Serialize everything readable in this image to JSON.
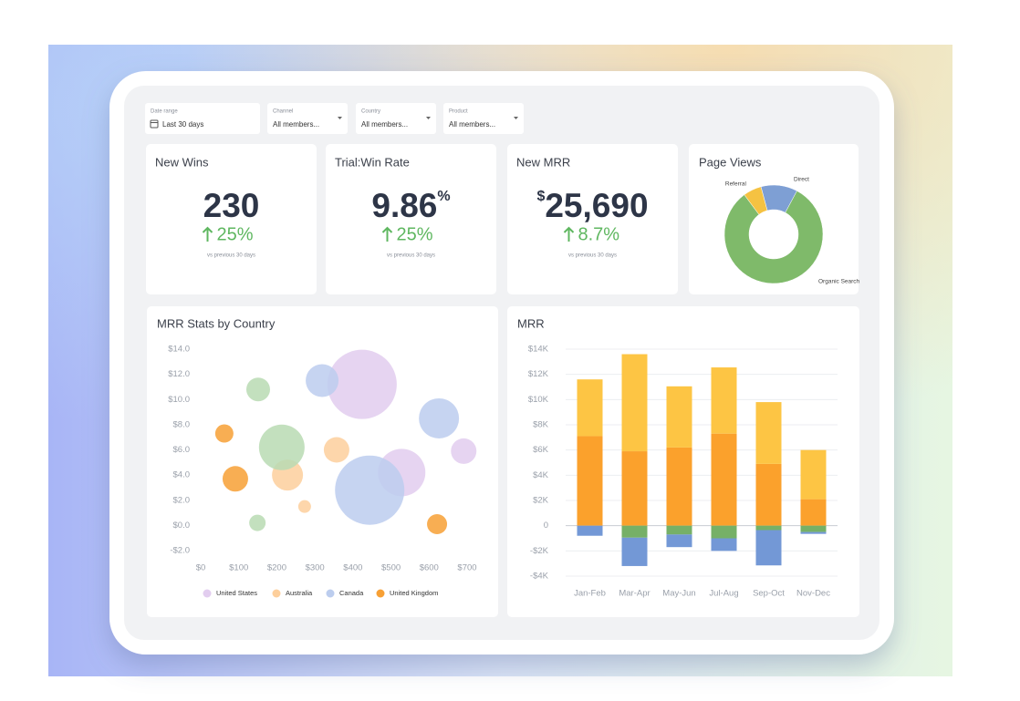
{
  "filters": [
    {
      "label": "Date range",
      "value": "Last 30 days"
    },
    {
      "label": "Channel",
      "value": "All members..."
    },
    {
      "label": "Country",
      "value": "All members..."
    },
    {
      "label": "Product",
      "value": "All members..."
    }
  ],
  "kpis": [
    {
      "title": "New Wins",
      "value": "230",
      "change": "25%",
      "note": "vs previous 30 days"
    },
    {
      "title": "Trial:Win Rate",
      "value": "9.86",
      "suffix": "%",
      "change": "25%",
      "note": "vs previous 30 days"
    },
    {
      "title": "New MRR",
      "prefix": "$",
      "value": "25,690",
      "change": "8.7%",
      "note": "vs previous 30 days"
    }
  ],
  "chart_data": [
    {
      "type": "pie",
      "title": "Page Views",
      "donut": true,
      "categories": [
        "Direct",
        "Organic Search",
        "Referral"
      ],
      "values": [
        12,
        82,
        6
      ],
      "colors": [
        "#7e9fd4",
        "#7fba6a",
        "#f5c242"
      ]
    },
    {
      "type": "scatter",
      "title": "MRR Stats by Country",
      "xlim": [
        0,
        700
      ],
      "xticks": [
        {
          "value": 0,
          "label": "$0"
        },
        {
          "value": 100,
          "label": "$100"
        },
        {
          "value": 200,
          "label": "$200"
        },
        {
          "value": 300,
          "label": "$300"
        },
        {
          "value": 400,
          "label": "$400"
        },
        {
          "value": 500,
          "label": "$500"
        },
        {
          "value": 600,
          "label": "$600"
        },
        {
          "value": 700,
          "label": "$700"
        }
      ],
      "ylim": [
        -2,
        14
      ],
      "yticks": [
        {
          "value": -2,
          "label": "-$2.0"
        },
        {
          "value": 0,
          "label": "$0.0"
        },
        {
          "value": 2,
          "label": "$2.0"
        },
        {
          "value": 4,
          "label": "$4.0"
        },
        {
          "value": 6,
          "label": "$6.0"
        },
        {
          "value": 8,
          "label": "$8.0"
        },
        {
          "value": 10,
          "label": "$10.0"
        },
        {
          "value": 12,
          "label": "$12.0"
        },
        {
          "value": 14,
          "label": "$14.0"
        }
      ],
      "grid": false,
      "series": [
        {
          "name": "United States",
          "color": "#e2cdef",
          "x": [
            424,
            528,
            691
          ],
          "values": [
            11.2,
            4.2,
            5.9
          ],
          "sizes": [
            38,
            26,
            14
          ]
        },
        {
          "name": "Australia",
          "color": "#fdcf9c",
          "x": [
            228,
            357,
            273
          ],
          "values": [
            4.0,
            6.0,
            1.5
          ],
          "sizes": [
            17,
            14,
            7
          ]
        },
        {
          "name": "Canada",
          "color": "#bccdee",
          "x": [
            319,
            626,
            444
          ],
          "values": [
            11.5,
            8.5,
            2.8
          ],
          "sizes": [
            18,
            22,
            38
          ]
        },
        {
          "name": "United Kingdom",
          "color": "#f7a035",
          "x": [
            62,
            91,
            621
          ],
          "values": [
            7.3,
            3.7,
            0.1
          ],
          "sizes": [
            10,
            14,
            11
          ]
        },
        {
          "color": "#b9dab3",
          "x": [
            151,
            213,
            149
          ],
          "values": [
            10.8,
            6.2,
            0.2
          ],
          "sizes": [
            13,
            25,
            9
          ]
        }
      ]
    },
    {
      "type": "bar",
      "stacked": true,
      "title": "MRR",
      "categories": [
        "Jan-Feb",
        "Mar-Apr",
        "May-Jun",
        "Jul-Aug",
        "Sep-Oct",
        "Nov-Dec"
      ],
      "ylim": [
        -4000,
        14000
      ],
      "yticks": [
        {
          "value": -4000,
          "label": "-$4K"
        },
        {
          "value": -2000,
          "label": "-$2K"
        },
        0,
        {
          "value": 2000,
          "label": "$2K"
        },
        {
          "value": 4000,
          "label": "$4K"
        },
        {
          "value": 6000,
          "label": "$6K"
        },
        {
          "value": 8000,
          "label": "$8K"
        },
        {
          "value": 10000,
          "label": "$10K"
        },
        {
          "value": 12000,
          "label": "$12K"
        },
        {
          "value": 14000,
          "label": "$14K"
        }
      ],
      "grid": true,
      "series": [
        {
          "color": "#fba12c",
          "values": [
            7100,
            5900,
            6200,
            7300,
            4900,
            2100
          ]
        },
        {
          "color": "#fdc544",
          "values": [
            4500,
            7700,
            4850,
            5250,
            4900,
            3900
          ]
        },
        {
          "color": "#76b067",
          "values": [
            0,
            -950,
            -700,
            -1000,
            -350,
            -500
          ]
        },
        {
          "color": "#7398d6",
          "values": [
            -800,
            -2250,
            -1000,
            -1000,
            -2800,
            -150
          ]
        }
      ]
    }
  ]
}
